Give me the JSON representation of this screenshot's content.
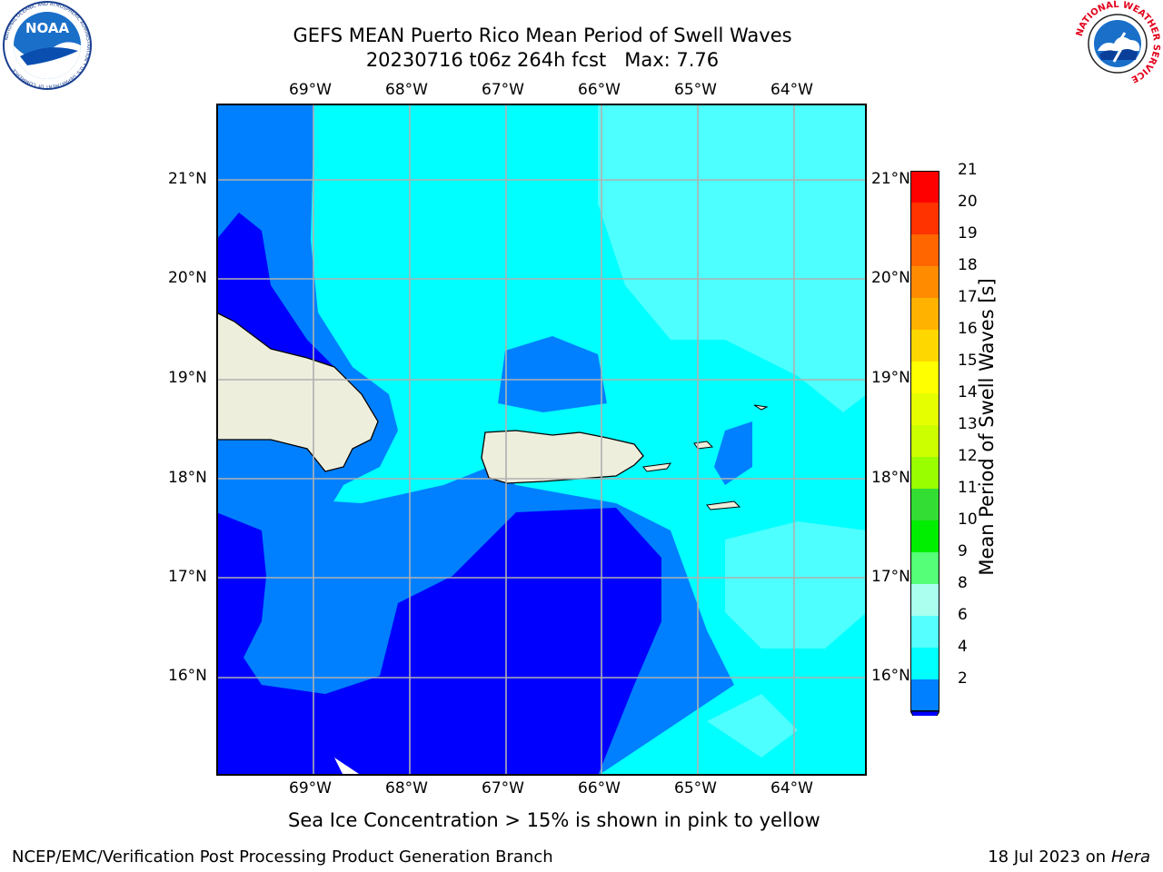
{
  "header": {
    "title_line1": "GEFS MEAN Puerto Rico Mean Period of Swell Waves",
    "title_line2": "20230716 t06z 264h fcst   Max: 7.76"
  },
  "logos": {
    "left": {
      "text": "NOAA",
      "ring_text": "NATIONAL OCEANIC AND ATMOSPHERIC ADMINISTRATION • U.S. DEPARTMENT OF COMMERCE"
    },
    "right": {
      "ring_text": "NATIONAL WEATHER SERVICE"
    }
  },
  "map": {
    "lon_labels": [
      "69°W",
      "68°W",
      "67°W",
      "66°W",
      "65°W",
      "64°W"
    ],
    "lat_labels": [
      "21°N",
      "20°N",
      "19°N",
      "18°N",
      "17°N",
      "16°N"
    ],
    "colors": {
      "land": "#eeeedd",
      "ocean_deep": "#0000ff",
      "ocean_mid": "#0080ff",
      "ocean_light": "#00ffff",
      "ocean_pale": "#4dffff",
      "grid": "#b0b0b0"
    }
  },
  "colorbar": {
    "label": "Mean Period of Swell Waves [s]",
    "ticks": [
      "21",
      "20",
      "19",
      "18",
      "17",
      "16",
      "15",
      "14",
      "13",
      "12",
      "11",
      "10",
      "9",
      "8",
      "6",
      "4",
      "2"
    ],
    "colors": [
      "#ff0000",
      "#ff3300",
      "#ff6600",
      "#ff8c00",
      "#ffb300",
      "#ffd700",
      "#ffff00",
      "#e6ff00",
      "#ccff00",
      "#99ff00",
      "#33dd33",
      "#00ee00",
      "#55ff77",
      "#aaffee",
      "#55ffff",
      "#00ffff",
      "#0080ff"
    ],
    "under_color": "#0000ff"
  },
  "footer": {
    "note": "Sea Ice Concentration > 15% is shown in pink to yellow",
    "left": "NCEP/EMC/Verification Post Processing Product Generation Branch",
    "right_date": "18 Jul 2023 on ",
    "right_machine": "Hera"
  }
}
